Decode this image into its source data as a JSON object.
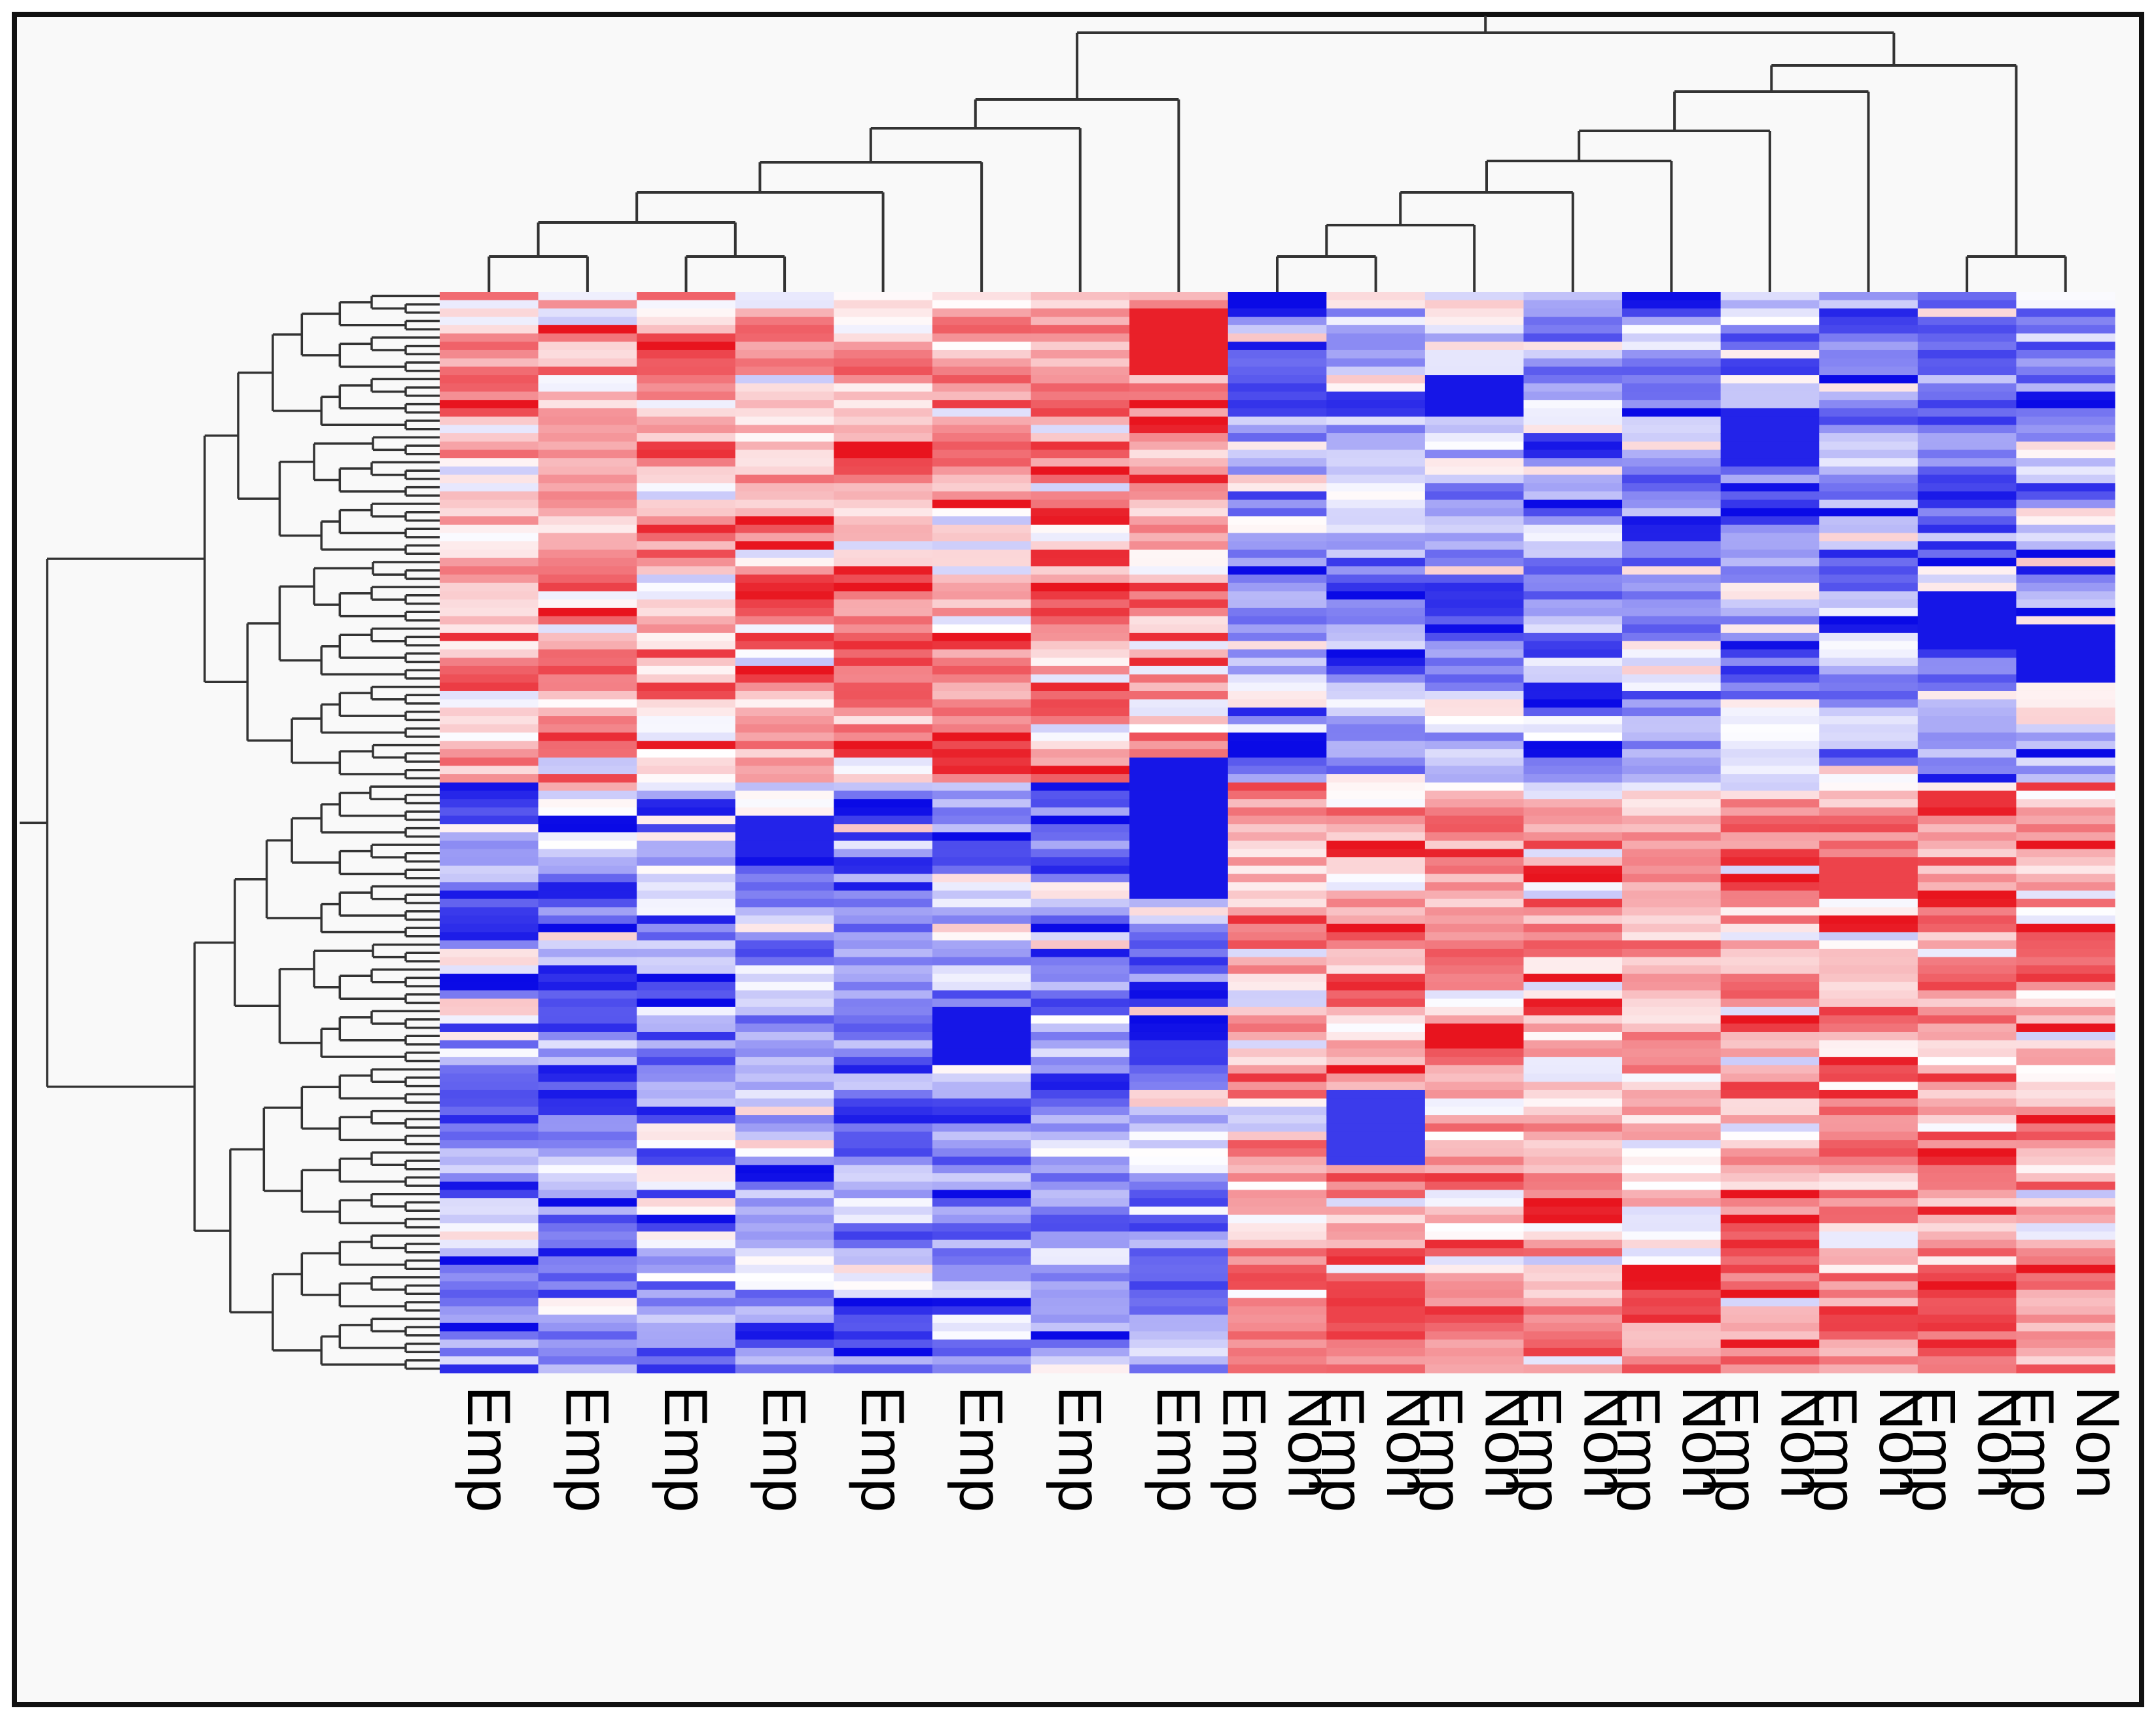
{
  "chart_data": {
    "type": "heatmap",
    "title": "",
    "xlabel": "",
    "ylabel": "",
    "columns": [
      "Emp",
      "Emp",
      "Emp",
      "Emp",
      "Emp",
      "Emp",
      "Emp",
      "Emp",
      "Non Emp",
      "Non Emp",
      "Non Emp",
      "Non Emp",
      "Non Emp",
      "Non Emp",
      "Non Emp",
      "Non Emp",
      "Non Emp"
    ],
    "groups": [
      {
        "name": "Emp",
        "count": 8
      },
      {
        "name": "Non Emp",
        "count": 9
      }
    ],
    "row_count": 130,
    "color_scale": {
      "low": "#0a0ae6",
      "mid": "#ffffff",
      "high": "#e8141e"
    },
    "value_range": [
      -1,
      1
    ],
    "column_dendrogram": true,
    "row_dendrogram": true,
    "legend": "none"
  }
}
